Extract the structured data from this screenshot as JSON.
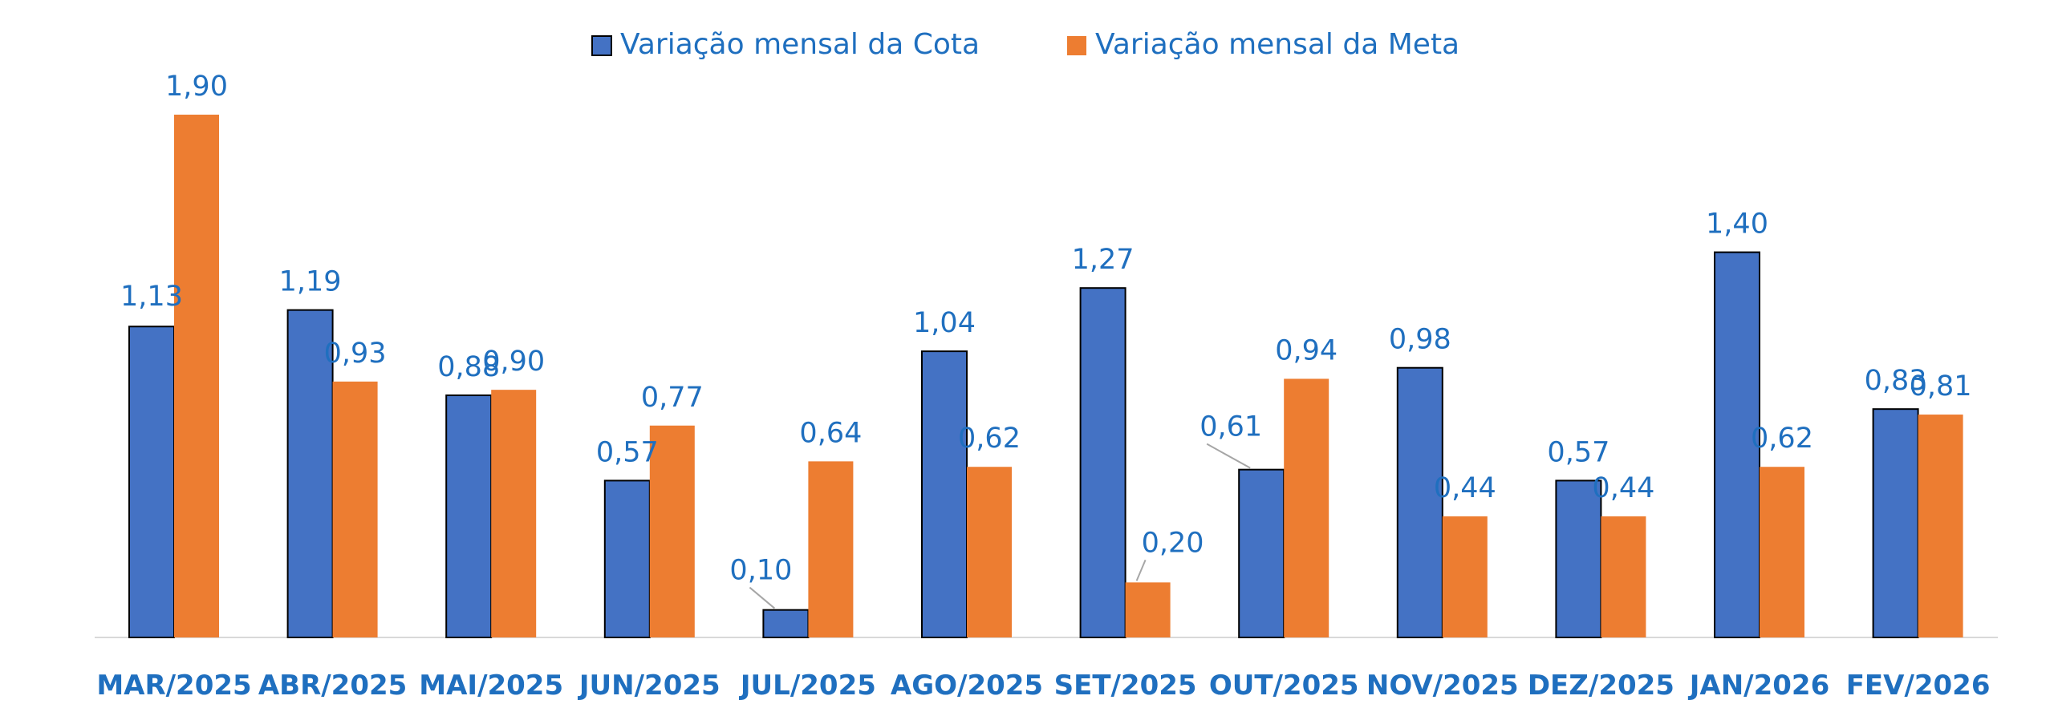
{
  "chart_data": {
    "type": "bar",
    "categories": [
      "MAR/2025",
      "ABR/2025",
      "MAI/2025",
      "JUN/2025",
      "JUL/2025",
      "AGO/2025",
      "SET/2025",
      "OUT/2025",
      "NOV/2025",
      "DEZ/2025",
      "JAN/2026",
      "FEV/2026"
    ],
    "series": [
      {
        "name": "Variação mensal da Cota",
        "color": "#4472c4",
        "values": [
          1.13,
          1.19,
          0.88,
          0.57,
          0.1,
          1.04,
          1.27,
          0.61,
          0.98,
          0.57,
          1.4,
          0.83
        ],
        "labels": [
          "1,13",
          "1,19",
          "0,88",
          "0,57",
          "0,10",
          "1,04",
          "1,27",
          "0,61",
          "0,98",
          "0,57",
          "1,40",
          "0,83"
        ]
      },
      {
        "name": "Variação mensal da Meta",
        "color": "#ed7d31",
        "values": [
          1.9,
          0.93,
          0.9,
          0.77,
          0.64,
          0.62,
          0.2,
          0.94,
          0.44,
          0.44,
          0.62,
          0.81
        ],
        "labels": [
          "1,90",
          "0,93",
          "0,90",
          "0,77",
          "0,64",
          "0,62",
          "0,20",
          "0,94",
          "0,44",
          "0,44",
          "0,62",
          "0,81"
        ]
      }
    ],
    "ylim": [
      0,
      2.0
    ],
    "grid": false,
    "legend_position": "top-center"
  }
}
